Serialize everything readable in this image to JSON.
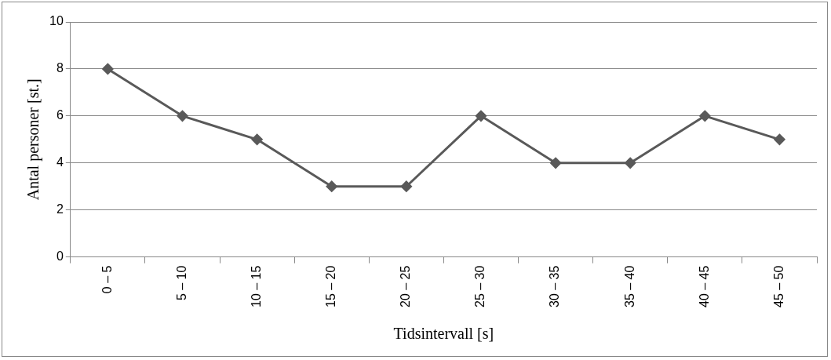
{
  "chart_data": {
    "type": "line",
    "xlabel": "Tidsintervall [s]",
    "ylabel": "Antal personer [st.]",
    "categories": [
      "0 – 5",
      "5 – 10",
      "10 – 15",
      "15 – 20",
      "20 – 25",
      "25 – 30",
      "30 – 35",
      "35 – 40",
      "40 – 45",
      "45 – 50"
    ],
    "series": [
      {
        "color": "#595959",
        "values": [
          8,
          6,
          5,
          3,
          3,
          6,
          4,
          4,
          6,
          5
        ]
      }
    ],
    "ylim": [
      0,
      10
    ],
    "yticks": [
      0,
      2,
      4,
      6,
      8,
      10
    ],
    "grid": "y",
    "legend": false,
    "marker": "diamond",
    "line_style": "solid"
  }
}
